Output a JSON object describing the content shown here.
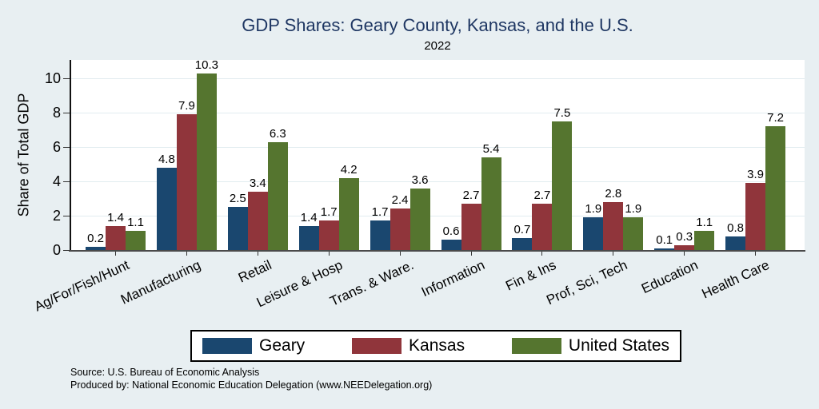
{
  "chart_data": {
    "type": "bar",
    "title": "GDP Shares: Geary County, Kansas, and the U.S.",
    "subtitle": "2022",
    "ylabel": "Share of Total GDP",
    "ylim": [
      0,
      11
    ],
    "yticks": [
      0,
      2,
      4,
      6,
      8,
      10
    ],
    "grid": true,
    "legend_position": "bottom",
    "categories": [
      "Ag/For/Fish/Hunt",
      "Manufacturing",
      "Retail",
      "Leisure & Hosp",
      "Trans. & Ware.",
      "Information",
      "Fin & Ins",
      "Prof, Sci, Tech",
      "Education",
      "Health Care"
    ],
    "series": [
      {
        "name": "Geary",
        "color": "#1a476f",
        "values": [
          0.2,
          4.8,
          2.5,
          1.4,
          1.7,
          0.6,
          0.7,
          1.9,
          0.1,
          0.8
        ]
      },
      {
        "name": "Kansas",
        "color": "#90353b",
        "values": [
          1.4,
          7.9,
          3.4,
          1.7,
          2.4,
          2.7,
          2.7,
          2.8,
          0.3,
          3.9
        ]
      },
      {
        "name": "United States",
        "color": "#55752f",
        "values": [
          1.1,
          10.3,
          6.3,
          4.2,
          3.6,
          5.4,
          7.5,
          1.9,
          1.1,
          7.2
        ]
      }
    ]
  },
  "footer": {
    "source": "Source: U.S. Bureau of Economic Analysis",
    "produced_by": "Produced by: National Economic Education Delegation (www.NEEDelegation.org)"
  },
  "colors": {
    "background": "#e8eff2",
    "title": "#1f3763",
    "plot_background": "#ffffff",
    "gridline": "#e2ecf0"
  }
}
